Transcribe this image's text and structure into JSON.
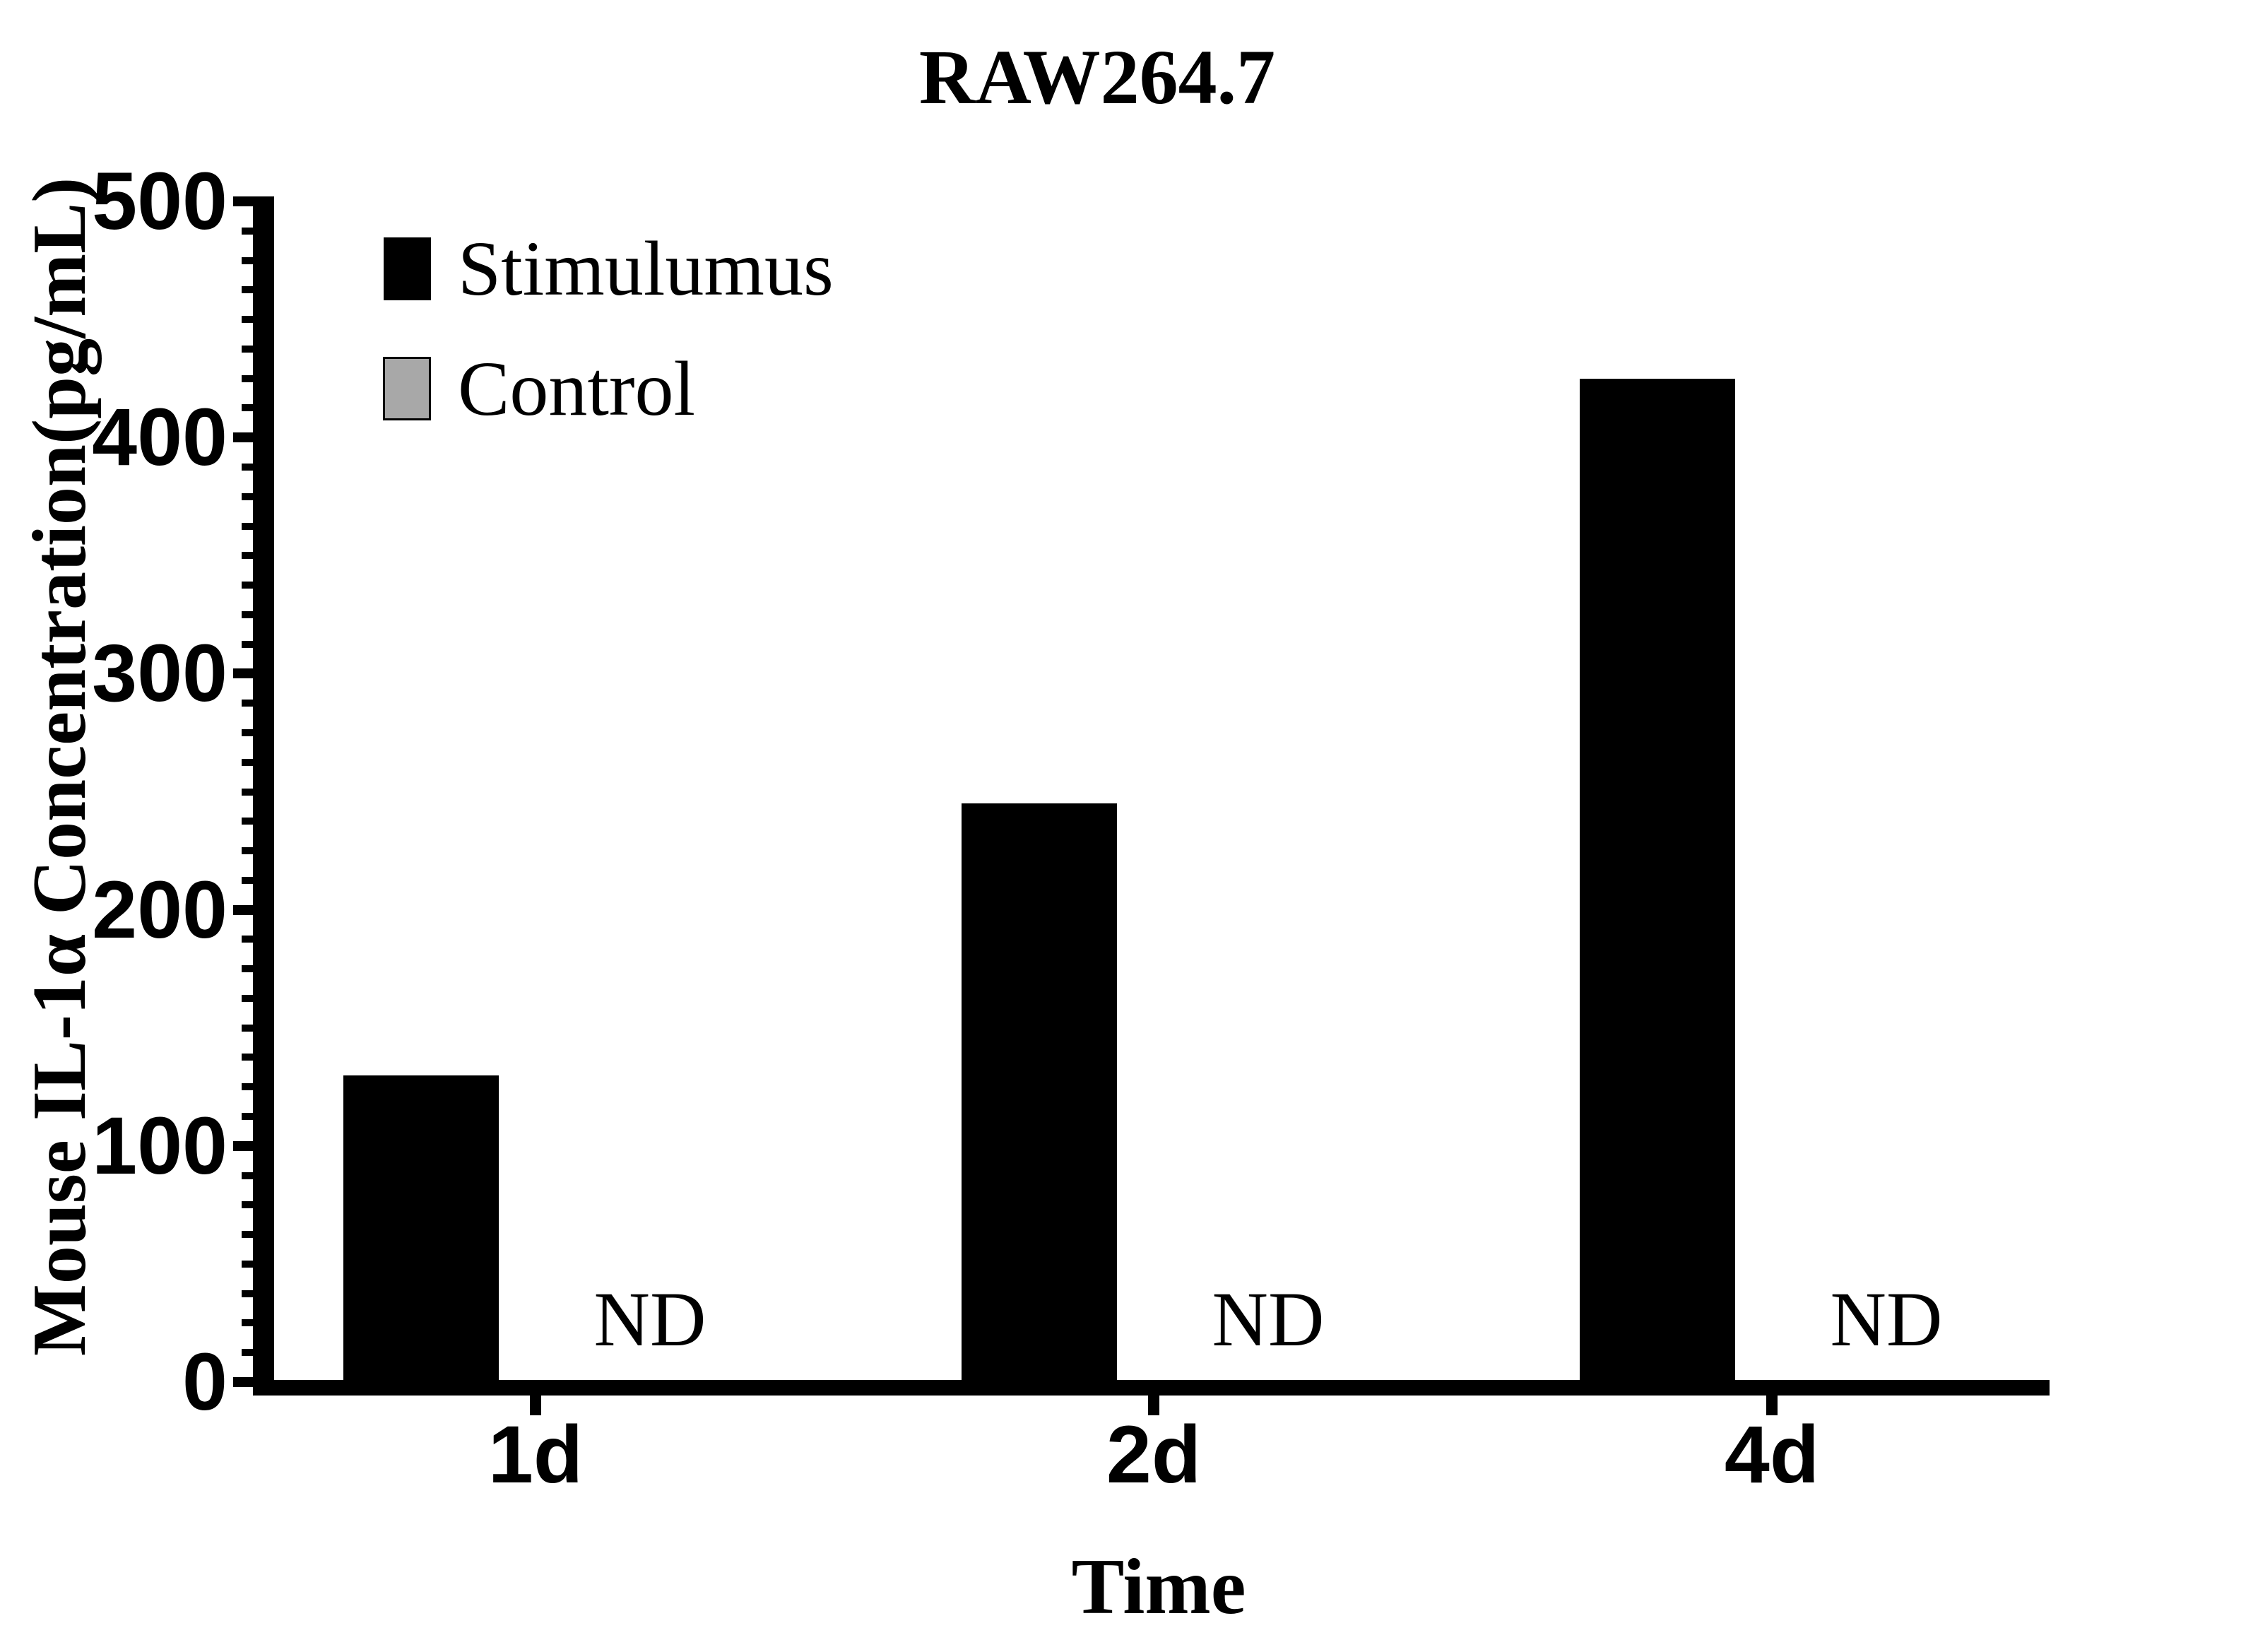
{
  "title": "RAW264.7",
  "chart_data": {
    "type": "bar",
    "title": "RAW264.7",
    "categories": [
      "1d",
      "2d",
      "4d"
    ],
    "series": [
      {
        "name": "Stimulumus",
        "color": "#000000",
        "values": [
          130,
          245,
          425
        ]
      },
      {
        "name": "Control",
        "color": "#a8a8a8",
        "values": [
          null,
          null,
          null
        ],
        "value_labels": [
          "ND",
          "ND",
          "ND"
        ]
      }
    ],
    "xlabel": "Time",
    "ylabel": "Mouse IL-1α Concentration(pg/mL)",
    "ylim": [
      0,
      500
    ],
    "ytick_step": 100,
    "ytick_labels": [
      "0",
      "100",
      "200",
      "300",
      "400",
      "500"
    ],
    "minor_tick_step": 12.5,
    "grid": false,
    "legend_position": "top-left",
    "axis_color": "#000000",
    "background_color": "#ffffff"
  }
}
